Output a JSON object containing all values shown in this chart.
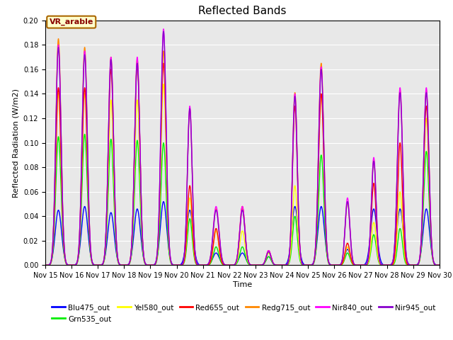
{
  "title": "Reflected Bands",
  "xlabel": "Time",
  "ylabel": "Reflected Radiation (W/m2)",
  "annotation": "VR_arable",
  "ylim": [
    0,
    0.2
  ],
  "yticks": [
    0.0,
    0.02,
    0.04,
    0.06,
    0.08,
    0.1,
    0.12,
    0.14,
    0.16,
    0.18,
    0.2
  ],
  "xtick_labels": [
    "Nov 15",
    "Nov 16",
    "Nov 17",
    "Nov 18",
    "Nov 19",
    "Nov 20",
    "Nov 21",
    "Nov 22",
    "Nov 23",
    "Nov 24",
    "Nov 25",
    "Nov 26",
    "Nov 27",
    "Nov 28",
    "Nov 29",
    "Nov 30"
  ],
  "series": {
    "Blu475_out": {
      "color": "#0000ff",
      "lw": 1.0
    },
    "Grn535_out": {
      "color": "#00ee00",
      "lw": 1.0
    },
    "Yel580_out": {
      "color": "#ffff00",
      "lw": 1.0
    },
    "Red655_out": {
      "color": "#ff0000",
      "lw": 1.0
    },
    "Redg715_out": {
      "color": "#ff8800",
      "lw": 1.0
    },
    "Nir840_out": {
      "color": "#ff00ff",
      "lw": 1.0
    },
    "Nir945_out": {
      "color": "#8800cc",
      "lw": 1.0
    }
  },
  "legend_order": [
    "Blu475_out",
    "Grn535_out",
    "Yel580_out",
    "Red655_out",
    "Redg715_out",
    "Nir840_out",
    "Nir945_out"
  ],
  "background_color": "#e8e8e8",
  "annotation_facecolor": "#ffffcc",
  "annotation_edgecolor": "#aa6600",
  "annotation_textcolor": "#880000"
}
